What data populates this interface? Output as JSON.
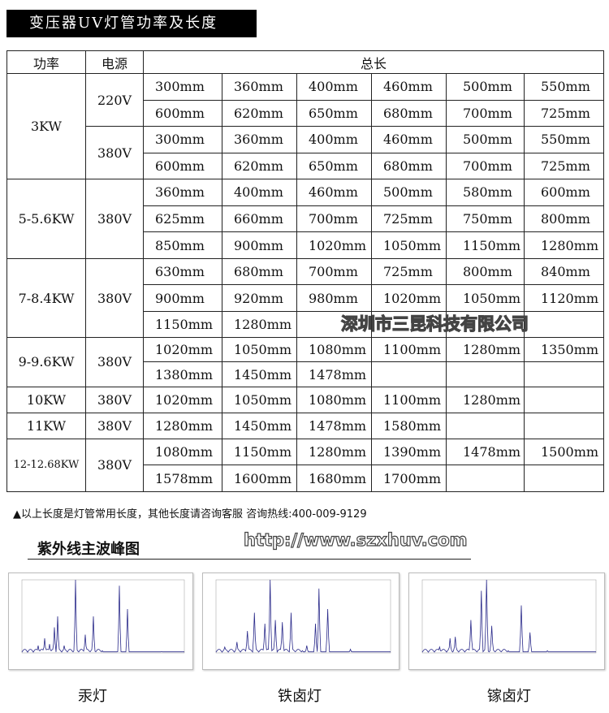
{
  "title": "变压器UV灯管功率及长度",
  "table": {
    "headers": [
      "功率",
      "电源",
      "总长"
    ],
    "groups": [
      {
        "power": "3KW",
        "blocks": [
          {
            "voltage": "220V",
            "rows": [
              [
                "300mm",
                "360mm",
                "400mm",
                "460mm",
                "500mm",
                "550mm"
              ],
              [
                "600mm",
                "620mm",
                "650mm",
                "680mm",
                "700mm",
                "725mm"
              ]
            ]
          },
          {
            "voltage": "380V",
            "rows": [
              [
                "300mm",
                "360mm",
                "400mm",
                "460mm",
                "500mm",
                "550mm"
              ],
              [
                "600mm",
                "620mm",
                "650mm",
                "680mm",
                "700mm",
                "725mm"
              ]
            ]
          }
        ]
      },
      {
        "power": "5-5.6KW",
        "blocks": [
          {
            "voltage": "380V",
            "rows": [
              [
                "360mm",
                "400mm",
                "460mm",
                "500mm",
                "580mm",
                "600mm"
              ],
              [
                "625mm",
                "660mm",
                "700mm",
                "725mm",
                "750mm",
                "800mm"
              ],
              [
                "850mm",
                "900mm",
                "1020mm",
                "1050mm",
                "1150mm",
                "1280mm"
              ]
            ]
          }
        ]
      },
      {
        "power": "7-8.4KW",
        "blocks": [
          {
            "voltage": "380V",
            "rows": [
              [
                "630mm",
                "680mm",
                "700mm",
                "725mm",
                "800mm",
                "840mm"
              ],
              [
                "900mm",
                "920mm",
                "980mm",
                "1020mm",
                "1050mm",
                "1120mm"
              ],
              [
                "1150mm",
                "1280mm",
                "",
                "",
                "",
                ""
              ]
            ]
          }
        ]
      },
      {
        "power": "9-9.6KW",
        "blocks": [
          {
            "voltage": "380V",
            "rows": [
              [
                "1020mm",
                "1050mm",
                "1080mm",
                "1100mm",
                "1280mm",
                "1350mm"
              ],
              [
                "1380mm",
                "1450mm",
                "1478mm",
                "",
                "",
                ""
              ]
            ]
          }
        ]
      },
      {
        "power": "10KW",
        "blocks": [
          {
            "voltage": "380V",
            "rows": [
              [
                "1020mm",
                "1050mm",
                "1080mm",
                "1100mm",
                "1280mm",
                ""
              ]
            ]
          }
        ]
      },
      {
        "power": "11KW",
        "blocks": [
          {
            "voltage": "380V",
            "rows": [
              [
                "1280mm",
                "1450mm",
                "1478mm",
                "1580mm",
                "",
                ""
              ]
            ]
          }
        ]
      },
      {
        "power": "12-12.68KW",
        "blocks": [
          {
            "voltage": "380V",
            "rows": [
              [
                "1080mm",
                "1150mm",
                "1280mm",
                "1390mm",
                "1478mm",
                "1500mm"
              ],
              [
                "1578mm",
                "1600mm",
                "1680mm",
                "1700mm",
                "",
                ""
              ]
            ]
          }
        ]
      }
    ]
  },
  "note": "▲以上长度是灯管常用长度，其他长度请咨询客服   咨询热线:400-009-9129",
  "section_title": "紫外线主波峰图",
  "spectra": [
    {
      "caption": "汞灯"
    },
    {
      "caption": "铁卤灯"
    },
    {
      "caption": "镓卤灯"
    }
  ],
  "watermark": [
    "深圳市三昆科技有限公司",
    "http://www.szxhuv.com"
  ],
  "colors": {
    "title_bg": "#000000",
    "spectrum_line": "#2a2a8a"
  }
}
